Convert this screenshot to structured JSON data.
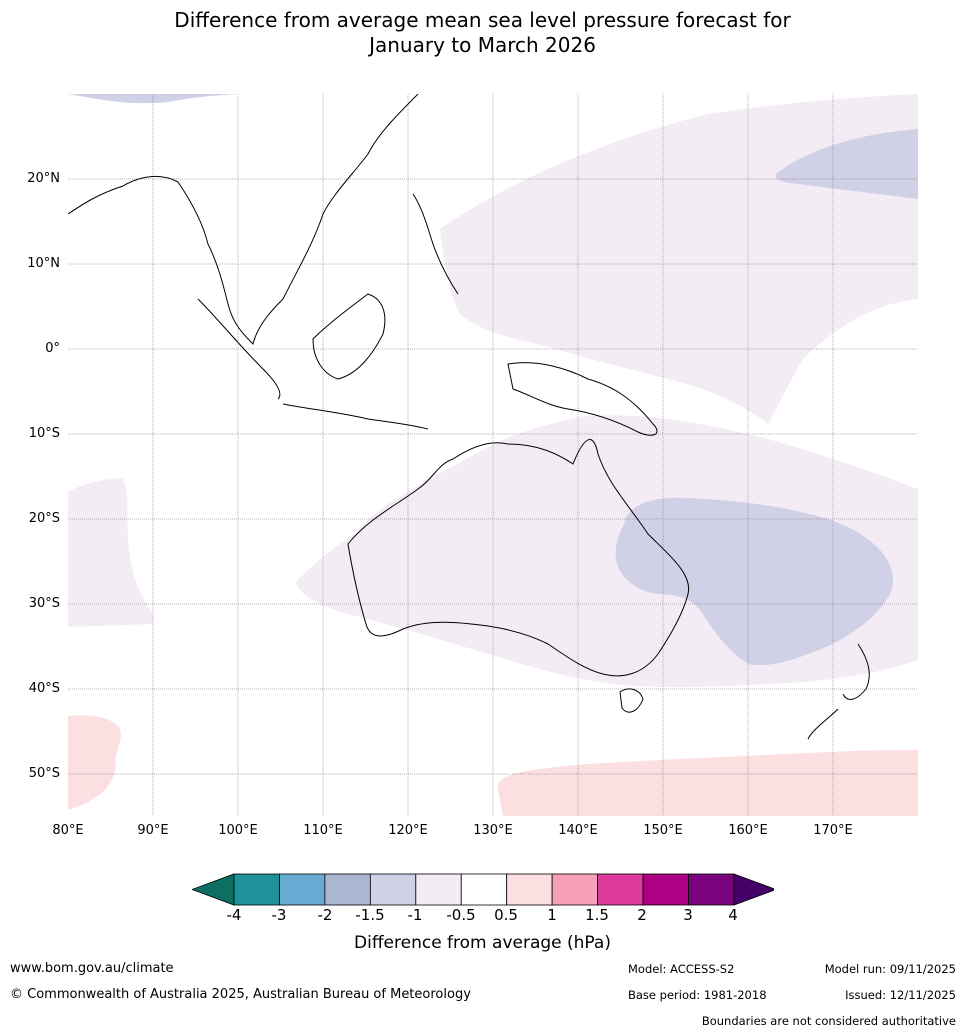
{
  "title": {
    "line1": "Difference from average mean sea level pressure forecast for",
    "line2": "January to March 2026"
  },
  "map": {
    "lat_labels": [
      "20°N",
      "10°N",
      "0°",
      "10°S",
      "20°S",
      "30°S",
      "40°S",
      "50°S"
    ],
    "lon_labels": [
      "80°E",
      "90°E",
      "100°E",
      "110°E",
      "120°E",
      "130°E",
      "140°E",
      "150°E",
      "160°E",
      "170°E"
    ],
    "extent": {
      "lon_min": 80,
      "lon_max": 180,
      "lat_min": -55,
      "lat_max": 30
    },
    "regions": [
      {
        "name": "north-pacific-low",
        "category": "-1 to -0.5 hPa"
      },
      {
        "name": "central-pacific-high",
        "category": "-1.5 to -1 hPa"
      },
      {
        "name": "australia-low",
        "category": "-1 to -0.5 hPa"
      },
      {
        "name": "tasman-sea-low",
        "category": "-1.5 to -1 hPa"
      },
      {
        "name": "southern-ocean-high",
        "category": "0.5 to 1 hPa"
      }
    ]
  },
  "colorbar": {
    "ticks": [
      "-4",
      "-3",
      "-2",
      "-1.5",
      "-1",
      "-0.5",
      "0.5",
      "1",
      "1.5",
      "2",
      "3",
      "4"
    ],
    "colors": [
      "#0d6e62",
      "#1e9199",
      "#68aad2",
      "#a9b7d3",
      "#d0d0e6",
      "#f3ecf5",
      "#ffffff",
      "#fcdfe0",
      "#f7a0b9",
      "#df3a9e",
      "#ad0082",
      "#7a027c",
      "#47026a"
    ],
    "label": "Difference from average (hPa)"
  },
  "footer": {
    "url": "www.bom.gov.au/climate",
    "copyright": "© Commonwealth of Australia 2025, Australian Bureau of Meteorology",
    "model": "Model: ACCESS-S2",
    "base_period": "Base period: 1981-2018",
    "model_run": "Model run: 09/11/2025",
    "issued": "Issued: 12/11/2025",
    "disclaimer": "Boundaries are not considered authoritative"
  }
}
